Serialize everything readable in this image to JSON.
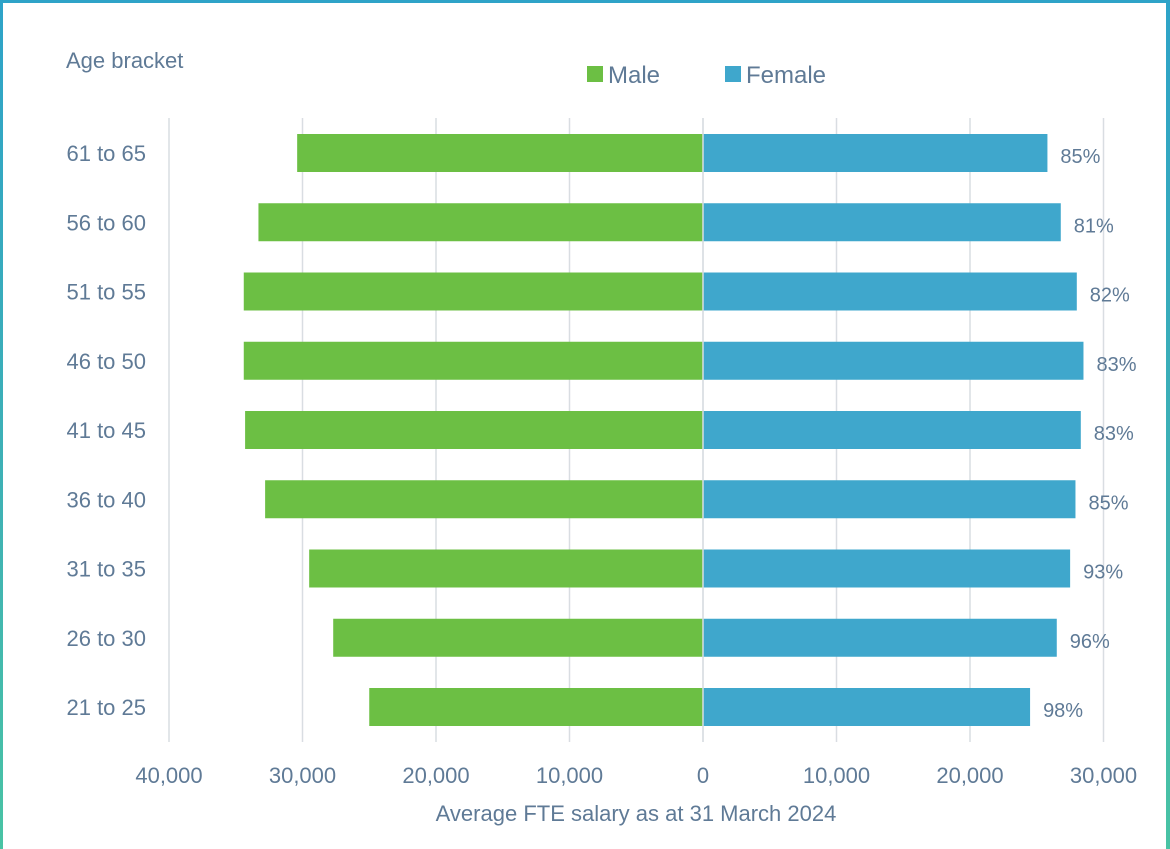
{
  "chart_data": {
    "type": "bar",
    "orientation": "horizontal",
    "layout": "back-to-back",
    "y_title": "Age bracket",
    "xlabel": "Average FTE salary as at 31 March 2024",
    "categories": [
      "61 to 65",
      "56 to 60",
      "51 to 55",
      "46 to 50",
      "41 to 45",
      "36 to 40",
      "31 to 35",
      "26 to 30",
      "21 to 25"
    ],
    "series": [
      {
        "name": "Male",
        "color": "#6cbf44",
        "direction": "left",
        "values": [
          30400,
          33300,
          34400,
          34400,
          34300,
          32800,
          29500,
          27700,
          25000
        ]
      },
      {
        "name": "Female",
        "color": "#3fa7cc",
        "direction": "right",
        "values": [
          25800,
          26800,
          28000,
          28500,
          28300,
          27900,
          27500,
          26500,
          24500
        ]
      }
    ],
    "data_labels": [
      "85%",
      "81%",
      "82%",
      "83%",
      "83%",
      "85%",
      "93%",
      "96%",
      "98%"
    ],
    "xlim": [
      -40000,
      30000
    ],
    "x_ticks": [
      -40000,
      -30000,
      -20000,
      -10000,
      0,
      10000,
      20000,
      30000
    ],
    "x_tick_labels": [
      "40,000",
      "30,000",
      "20,000",
      "10,000",
      "0",
      "10,000",
      "20,000",
      "30,000"
    ],
    "legend_position": "top-center",
    "grid": "vertical"
  }
}
